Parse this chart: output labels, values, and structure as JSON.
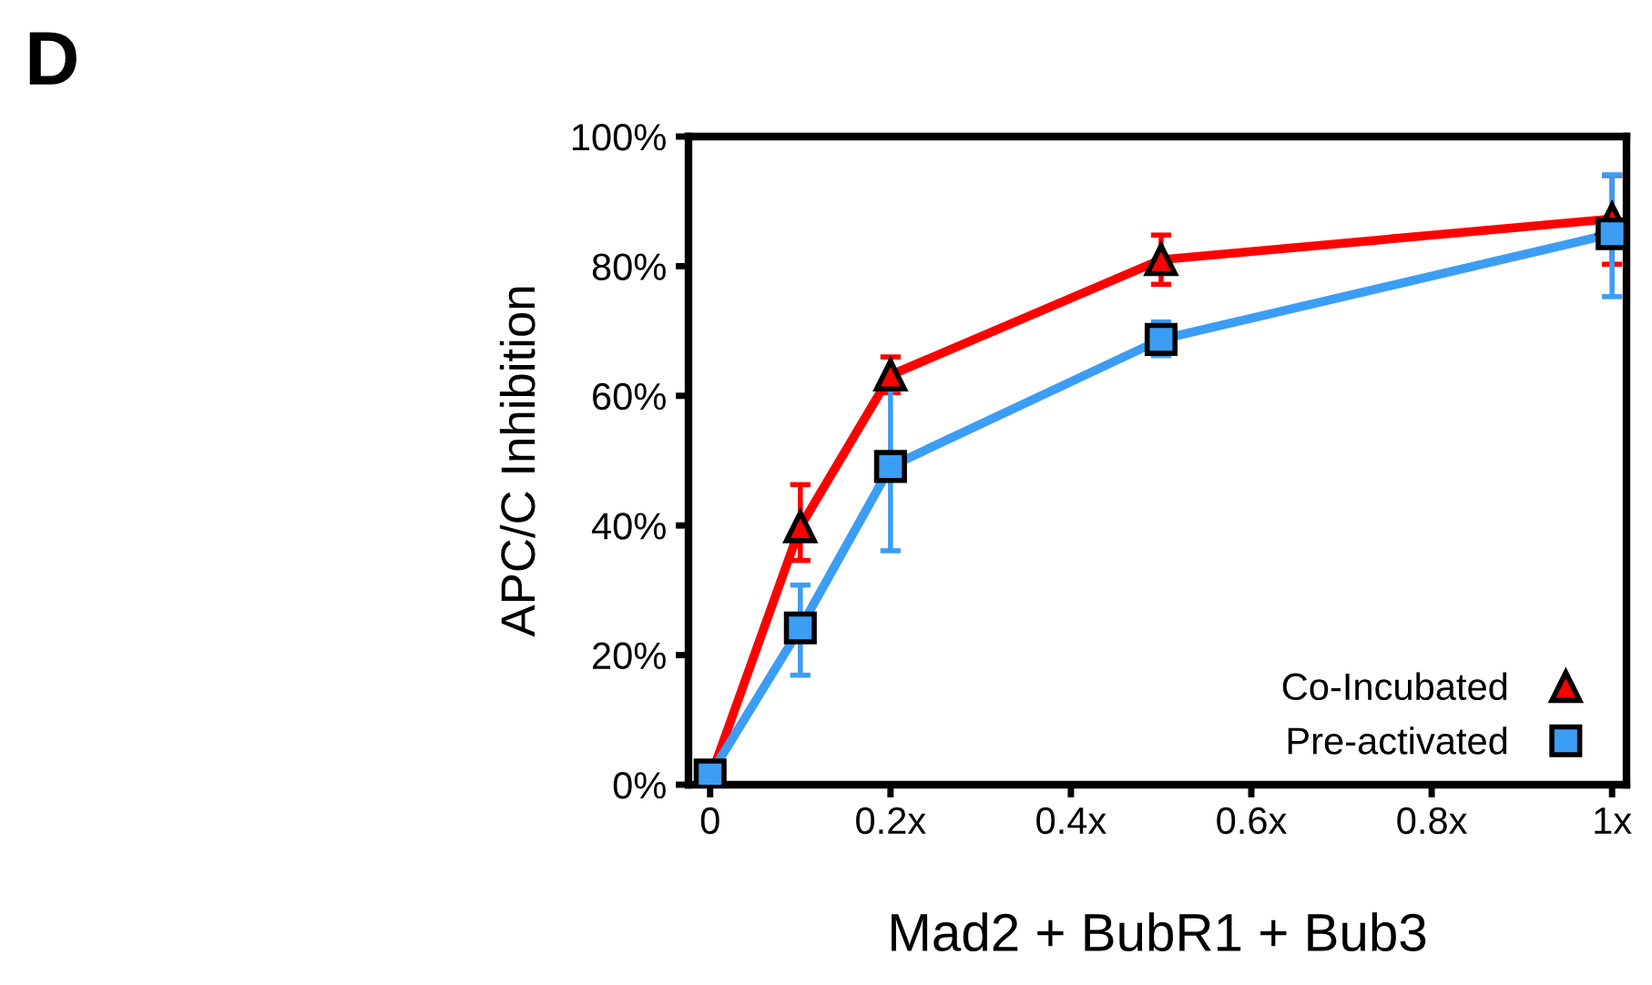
{
  "chart_data": {
    "type": "line",
    "title": "D",
    "xlabel": "Mad2 + BubR1 + Bub3",
    "ylabel": "APC/C Inhibition",
    "x": [
      0,
      0.1,
      0.2,
      0.5,
      1
    ],
    "series": [
      {
        "name": "Co-Incubated",
        "color": "#ff0000",
        "marker": "triangle",
        "values": [
          1,
          39.8,
          63.2,
          81,
          87.3
        ],
        "errors": [
          null,
          [
            34.6,
            46.3
          ],
          [
            60.5,
            66
          ],
          [
            77.2,
            84.8
          ],
          [
            80.3,
            94
          ]
        ]
      },
      {
        "name": "Pre-activated",
        "color": "#3c9df5",
        "marker": "square",
        "values": [
          1.5,
          24.2,
          49.1,
          68.7,
          85
        ],
        "errors": [
          null,
          [
            16.9,
            30.8
          ],
          [
            36.1,
            61
          ],
          [
            66.2,
            71.4
          ],
          [
            75.3,
            94.1
          ]
        ]
      }
    ],
    "xlim": [
      -0.024,
      1.016
    ],
    "xticks": [
      0,
      {
        "value": 0.2,
        "label": "0.2x"
      },
      {
        "value": 0.4,
        "label": "0.4x"
      },
      {
        "value": 0.6,
        "label": "0.6x"
      },
      {
        "value": 0.8,
        "label": "0.8x"
      },
      {
        "value": 1,
        "label": "1x"
      }
    ],
    "ylim": [
      0,
      100
    ],
    "yticks": [
      {
        "value": 0,
        "label": "0%"
      },
      {
        "value": 20,
        "label": "20%"
      },
      {
        "value": 40,
        "label": "40%"
      },
      {
        "value": 60,
        "label": "60%"
      },
      {
        "value": 80,
        "label": "80%"
      },
      {
        "value": 100,
        "label": "100%"
      }
    ],
    "legend": "bottom right",
    "grid": false,
    "line_style": "solid"
  }
}
